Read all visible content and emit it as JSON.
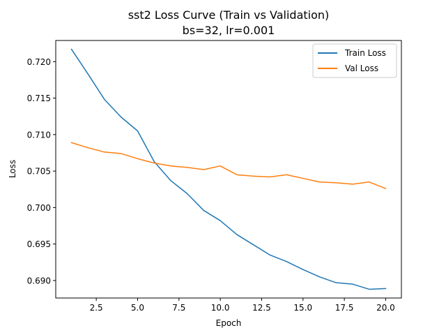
{
  "chart_data": {
    "type": "line",
    "title": "sst2 Loss Curve (Train vs Validation)",
    "subtitle": "bs=32, lr=0.001",
    "xlabel": "Epoch",
    "ylabel": "Loss",
    "xlim": [
      0.05,
      20.95
    ],
    "ylim": [
      0.6876,
      0.7229
    ],
    "xticks": [
      2.5,
      5.0,
      7.5,
      10.0,
      12.5,
      15.0,
      17.5,
      20.0
    ],
    "xtick_labels": [
      "2.5",
      "5.0",
      "7.5",
      "10.0",
      "12.5",
      "15.0",
      "17.5",
      "20.0"
    ],
    "yticks": [
      0.69,
      0.695,
      0.7,
      0.705,
      0.71,
      0.715,
      0.72
    ],
    "ytick_labels": [
      "0.690",
      "0.695",
      "0.700",
      "0.705",
      "0.710",
      "0.715",
      "0.720"
    ],
    "grid": false,
    "legend_position": "top-right",
    "x": [
      1,
      2,
      3,
      4,
      5,
      6,
      7,
      8,
      9,
      10,
      11,
      12,
      13,
      14,
      15,
      16,
      17,
      18,
      19,
      20
    ],
    "series": [
      {
        "name": "Train Loss",
        "color": "#1f77b4",
        "values": [
          0.7217,
          0.7183,
          0.7148,
          0.7124,
          0.7105,
          0.7063,
          0.7037,
          0.7019,
          0.6996,
          0.6982,
          0.6963,
          0.6949,
          0.6935,
          0.6926,
          0.6915,
          0.6905,
          0.6897,
          0.6895,
          0.6888,
          0.6889
        ]
      },
      {
        "name": "Val Loss",
        "color": "#ff7f0e",
        "values": [
          0.7089,
          0.7082,
          0.7076,
          0.7074,
          0.7067,
          0.7061,
          0.7057,
          0.7055,
          0.7052,
          0.7057,
          0.7045,
          0.7043,
          0.7042,
          0.7045,
          0.704,
          0.7035,
          0.7034,
          0.7032,
          0.7035,
          0.7026
        ]
      }
    ]
  }
}
